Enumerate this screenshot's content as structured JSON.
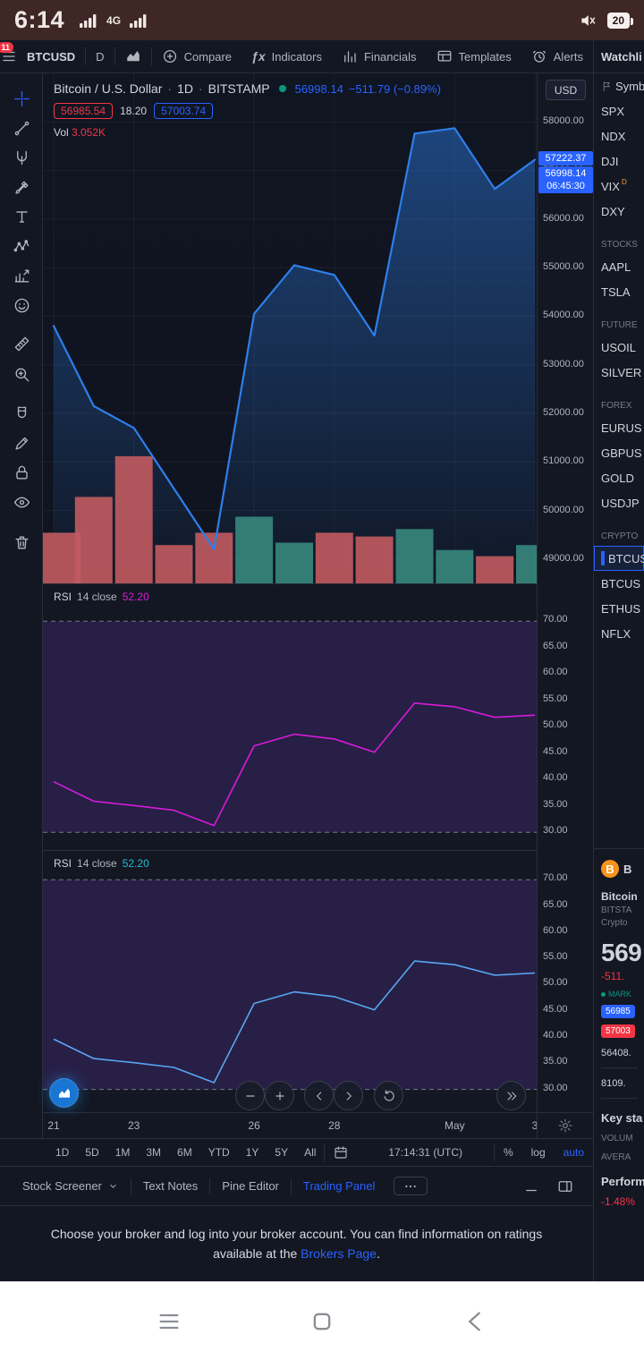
{
  "colors": {
    "bg": "#131722",
    "panel_border": "#2a2e39",
    "text": "#d1d4dc",
    "muted": "#787b86",
    "icon": "#b2b5be",
    "accent_blue": "#2962ff",
    "line_blue": "#2e7fea",
    "red": "#f23645",
    "green": "#089981",
    "vol_up": "#37887d",
    "vol_down": "#c25b60",
    "badge_blue": "#2962ff",
    "status_bar_bg": "#3e2725",
    "bitcoin_orange": "#f7931a"
  },
  "status_bar": {
    "time": "6:14",
    "network_badge": "4G",
    "battery": "20"
  },
  "top_toolbar": {
    "menu_badge": "11",
    "symbol": "BTCUSD",
    "interval": "D",
    "compare": "Compare",
    "indicators": "Indicators",
    "financials": "Financials",
    "templates": "Templates",
    "alerts": "Alerts"
  },
  "left_toolbar": {
    "tools": [
      {
        "name": "crosshair",
        "active": true
      },
      {
        "name": "trendline"
      },
      {
        "name": "pitchfork"
      },
      {
        "name": "brush"
      },
      {
        "name": "text"
      },
      {
        "name": "pattern"
      },
      {
        "name": "forecast"
      },
      {
        "name": "emoji"
      },
      {
        "name": "ruler"
      },
      {
        "name": "zoom"
      },
      {
        "name": "magnet"
      },
      {
        "name": "draw"
      },
      {
        "name": "lock"
      },
      {
        "name": "eye"
      },
      {
        "name": "trash"
      }
    ]
  },
  "legend": {
    "title": "Bitcoin / U.S. Dollar",
    "sep": "·",
    "interval": "1D",
    "exchange": "BITSTAMP",
    "price": "56998.14",
    "change": "−511.79 (−0.89%)",
    "open": "56985.54",
    "spread": "18.20",
    "close": "57003.74",
    "vol_label": "Vol",
    "vol_value": "3.052K"
  },
  "price_axis": {
    "currency": "USD",
    "last_label": "57222.37",
    "close_label": "56998.14",
    "countdown": "06:45:30"
  },
  "chart_data": [
    {
      "type": "area",
      "symbol": "BTCUSD",
      "title": "Bitcoin / U.S. Dollar",
      "interval": "1D",
      "exchange": "BITSTAMP",
      "prices": [
        53800,
        52150,
        51700,
        50450,
        49200,
        54050,
        55050,
        54850,
        53600,
        57760,
        57870,
        56620,
        57222.37
      ],
      "ylim": [
        48500,
        59000
      ],
      "y_ticks": [
        58000,
        57000,
        56000,
        55000,
        54000,
        53000,
        52000,
        51000,
        50000,
        49000
      ],
      "x_ticks": [
        {
          "label": "21",
          "i": 0
        },
        {
          "label": "23",
          "i": 2
        },
        {
          "label": "26",
          "i": 5
        },
        {
          "label": "28",
          "i": 7
        },
        {
          "label": "May",
          "i": 10
        },
        {
          "label": "3",
          "i": 12
        }
      ],
      "last_price": 57222.37,
      "close_price": 56998.14,
      "volume": {
        "unit": "K",
        "values": [
          4.1,
          7.0,
          10.3,
          3.1,
          4.1,
          5.4,
          3.3,
          4.1,
          3.8,
          4.4,
          2.7,
          2.2,
          3.1
        ],
        "dirs": [
          "d",
          "d",
          "d",
          "d",
          "d",
          "u",
          "u",
          "d",
          "d",
          "u",
          "u",
          "d",
          "u"
        ]
      }
    },
    {
      "type": "line",
      "name": "RSI",
      "params": "14 close",
      "last": "52.20",
      "color": "#d81bd8",
      "value_color": "#d81bd8",
      "values": [
        39.6,
        35.9,
        35.1,
        34.2,
        31.3,
        46.4,
        48.6,
        47.7,
        45.2,
        54.5,
        53.8,
        51.8,
        52.2
      ],
      "bands": [
        70,
        30
      ],
      "y_ticks": [
        70,
        65,
        60,
        55,
        50,
        45,
        40,
        35,
        30
      ],
      "ylim": [
        26.5,
        77
      ]
    },
    {
      "type": "line",
      "name": "RSI",
      "params": "14 close",
      "last": "52.20",
      "color": "#58a6f2",
      "value_color": "#2bbad3",
      "values": [
        39.6,
        35.9,
        35.1,
        34.2,
        31.3,
        46.4,
        48.6,
        47.7,
        45.2,
        54.5,
        53.8,
        51.8,
        52.2
      ],
      "bands": [
        70,
        30
      ],
      "y_ticks": [
        70,
        65,
        60,
        55,
        50,
        45,
        40,
        35,
        30
      ],
      "ylim": [
        25.5,
        75.5
      ]
    }
  ],
  "bottom_bar": {
    "ranges": [
      "1D",
      "5D",
      "1M",
      "3M",
      "6M",
      "YTD",
      "1Y",
      "5Y",
      "All"
    ],
    "clock": "17:14:31 (UTC)",
    "scales": [
      "%",
      "log",
      "auto"
    ],
    "active_scale": "auto"
  },
  "tabs": {
    "items": [
      "Stock Screener",
      "Text Notes",
      "Pine Editor",
      "Trading Panel"
    ],
    "active": "Trading Panel"
  },
  "broker_panel": {
    "message": "Choose your broker and log into your broker account. You can find information on ratings available at the ",
    "link": "Brokers Page",
    "suffix": "."
  },
  "watchlist": {
    "title": "Watchli",
    "symbol_header": "Symbo",
    "sections": [
      {
        "label": "",
        "items": [
          {
            "s": "SPX"
          },
          {
            "s": "NDX"
          },
          {
            "s": "DJI"
          },
          {
            "s": "VIX",
            "sup": "D"
          },
          {
            "s": "DXY"
          }
        ]
      },
      {
        "label": "STOCKS",
        "items": [
          {
            "s": "AAPL"
          },
          {
            "s": "TSLA"
          }
        ]
      },
      {
        "label": "FUTURE",
        "items": [
          {
            "s": "USOIL"
          },
          {
            "s": "SILVER"
          }
        ]
      },
      {
        "label": "FOREX",
        "items": [
          {
            "s": "EURUS"
          },
          {
            "s": "GBPUS"
          },
          {
            "s": "GOLD"
          },
          {
            "s": "USDJP"
          }
        ]
      },
      {
        "label": "CRYPTO",
        "items": [
          {
            "s": "BTCUS",
            "selected": true
          },
          {
            "s": "BTCUS"
          },
          {
            "s": "ETHUS"
          },
          {
            "s": "NFLX"
          }
        ]
      }
    ]
  },
  "symbol_detail": {
    "logo": "B",
    "title": "B",
    "name": "Bitcoin",
    "exchange": "BITSTA",
    "type": "Crypto",
    "price": "569",
    "change": "-511.",
    "market_status": "MARK",
    "bid": "56985",
    "ask": "57003",
    "stat1": "56408.",
    "stat2": "8109.",
    "key_stats_title": "Key sta",
    "key_stats_rows": [
      "VOLUM",
      "AVERA"
    ],
    "performance_title": "Perform",
    "performance_value": "-1.48%"
  }
}
